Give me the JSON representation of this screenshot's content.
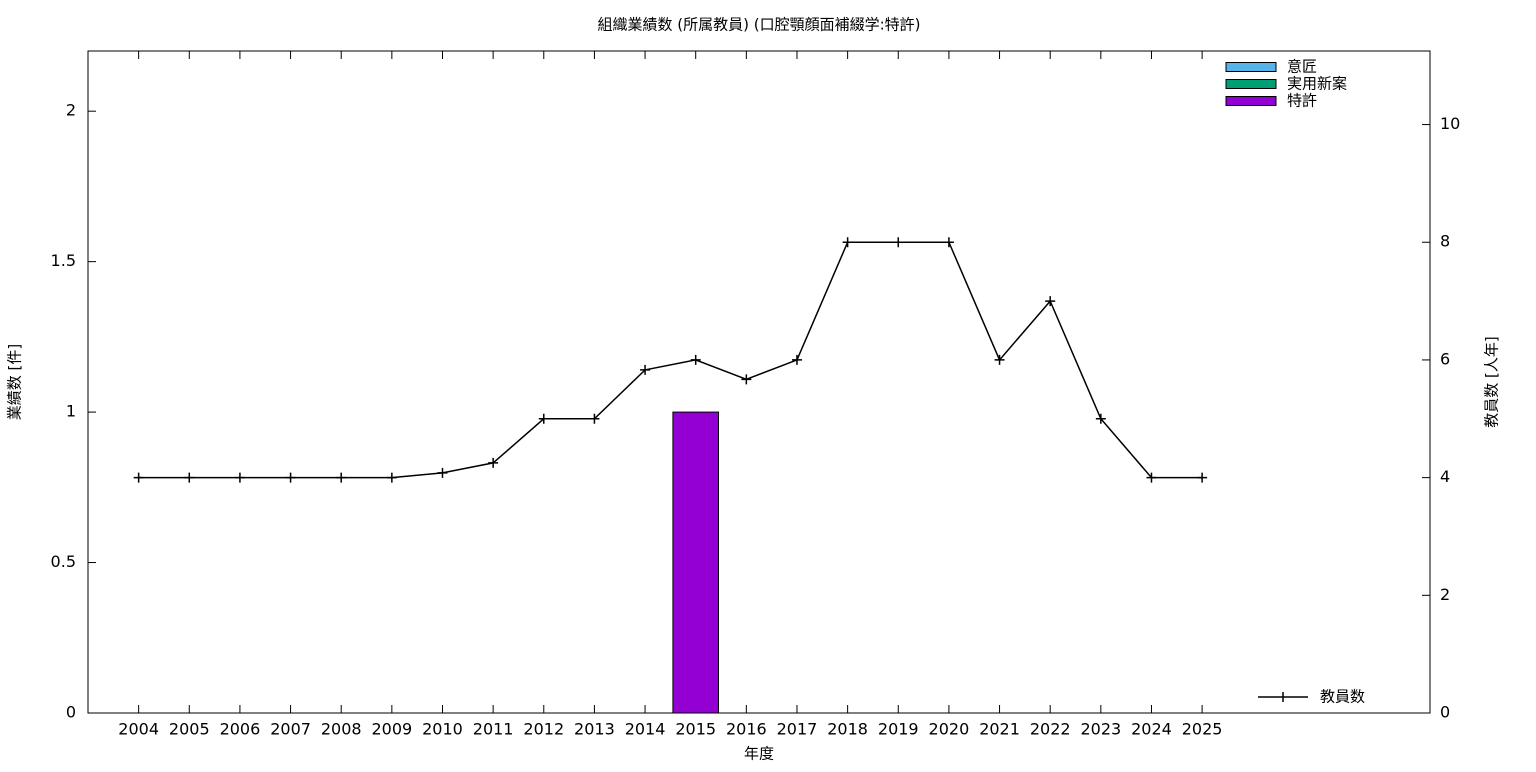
{
  "chart_data": {
    "type": "bar",
    "stacked": true,
    "title": "組織業績数 (所属教員) (口腔顎顔面補綴学:特許)",
    "xlabel": "年度",
    "ylabel": "業績数 [件]",
    "y2label": "教員数 [人年]",
    "categories": [
      "2004",
      "2005",
      "2006",
      "2007",
      "2008",
      "2009",
      "2010",
      "2011",
      "2012",
      "2013",
      "2014",
      "2015",
      "2016",
      "2017",
      "2018",
      "2019",
      "2020",
      "2021",
      "2022",
      "2023",
      "2024",
      "2025"
    ],
    "series": [
      {
        "name": "意匠",
        "color": "#56b4e9",
        "values": [
          0,
          0,
          0,
          0,
          0,
          0,
          0,
          0,
          0,
          0,
          0,
          0,
          0,
          0,
          0,
          0,
          0,
          0,
          0,
          0,
          0,
          0
        ]
      },
      {
        "name": "実用新案",
        "color": "#009e73",
        "values": [
          0,
          0,
          0,
          0,
          0,
          0,
          0,
          0,
          0,
          0,
          0,
          0,
          0,
          0,
          0,
          0,
          0,
          0,
          0,
          0,
          0,
          0
        ]
      },
      {
        "name": "特許",
        "color": "#9400d3",
        "values": [
          0,
          0,
          0,
          0,
          0,
          0,
          0,
          0,
          0,
          0,
          0,
          1,
          0,
          0,
          0,
          0,
          0,
          0,
          0,
          0,
          0,
          0
        ]
      },
      {
        "name": "教員数",
        "color": "#000000",
        "type": "line",
        "axis": "y2",
        "values": [
          4,
          4,
          4,
          4,
          4,
          4,
          4.08,
          4.25,
          5,
          5,
          5.83,
          6,
          5.67,
          6,
          8,
          8,
          8,
          6,
          7,
          5,
          4,
          4
        ]
      }
    ],
    "ylim": [
      0,
      2.2
    ],
    "yticks": [
      0,
      0.5,
      1,
      1.5,
      2
    ],
    "y2lim": [
      0,
      11.25
    ],
    "y2ticks": [
      0,
      2,
      4,
      6,
      8,
      10
    ],
    "legend": "top-right",
    "line_legend": "bottom-right"
  }
}
